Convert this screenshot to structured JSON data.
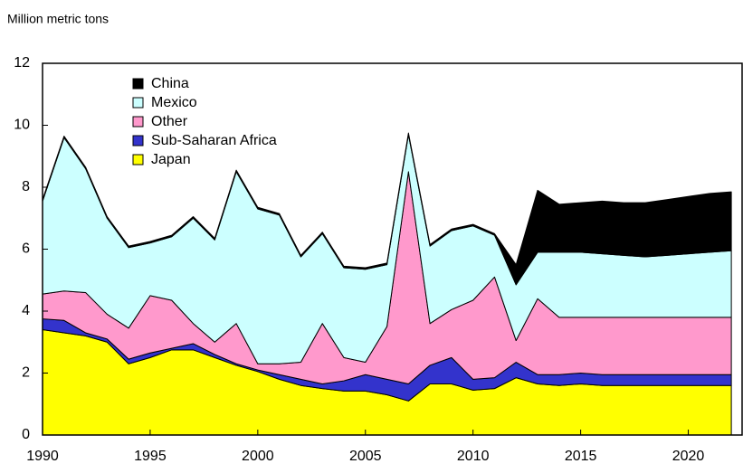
{
  "chart_data": {
    "type": "stacked_area",
    "y_axis_label": "Million metric tons",
    "x": [
      1990,
      1991,
      1992,
      1993,
      1994,
      1995,
      1996,
      1997,
      1998,
      1999,
      2000,
      2001,
      2002,
      2003,
      2004,
      2005,
      2006,
      2007,
      2008,
      2009,
      2010,
      2011,
      2012,
      2013,
      2014,
      2015,
      2016,
      2017,
      2018,
      2019,
      2020,
      2021,
      2022
    ],
    "series": [
      {
        "name": "Japan",
        "color": "#ffff00",
        "values": [
          3.4,
          3.3,
          3.2,
          3.0,
          2.3,
          2.5,
          2.75,
          2.75,
          2.5,
          2.25,
          2.05,
          1.8,
          1.6,
          1.5,
          1.42,
          1.42,
          1.3,
          1.1,
          1.65,
          1.65,
          1.45,
          1.5,
          1.85,
          1.65,
          1.6,
          1.65,
          1.6,
          1.6,
          1.6,
          1.6,
          1.6,
          1.6,
          1.6
        ]
      },
      {
        "name": "Sub-Saharan Africa",
        "color": "#3333cc",
        "values": [
          0.35,
          0.4,
          0.1,
          0.1,
          0.15,
          0.15,
          0.05,
          0.2,
          0.1,
          0.05,
          0.05,
          0.15,
          0.2,
          0.15,
          0.33,
          0.53,
          0.5,
          0.55,
          0.6,
          0.85,
          0.35,
          0.35,
          0.5,
          0.3,
          0.35,
          0.35,
          0.35,
          0.35,
          0.35,
          0.35,
          0.35,
          0.35,
          0.35
        ]
      },
      {
        "name": "Other",
        "color": "#ff99cc",
        "values": [
          0.8,
          0.95,
          1.3,
          0.8,
          1.0,
          1.85,
          1.55,
          0.65,
          0.4,
          1.3,
          0.2,
          0.35,
          0.55,
          1.95,
          0.75,
          0.4,
          1.7,
          6.85,
          1.35,
          1.55,
          2.55,
          3.25,
          0.7,
          2.45,
          1.85,
          1.8,
          1.85,
          1.85,
          1.85,
          1.85,
          1.85,
          1.85,
          1.85
        ]
      },
      {
        "name": "Mexico",
        "color": "#ccffff",
        "values": [
          3.0,
          4.95,
          4.0,
          3.1,
          2.6,
          1.7,
          2.05,
          3.4,
          3.3,
          4.9,
          5.0,
          4.8,
          3.4,
          2.9,
          2.9,
          3.0,
          2.0,
          1.2,
          2.5,
          2.55,
          2.4,
          1.35,
          1.8,
          1.5,
          2.1,
          2.1,
          2.05,
          2.0,
          1.95,
          2.0,
          2.05,
          2.1,
          2.15
        ]
      },
      {
        "name": "China",
        "color": "#000000",
        "values": [
          0.05,
          0.05,
          0.05,
          0.05,
          0.05,
          0.05,
          0.05,
          0.05,
          0.05,
          0.05,
          0.05,
          0.05,
          0.05,
          0.05,
          0.05,
          0.05,
          0.05,
          0.05,
          0.05,
          0.05,
          0.05,
          0.05,
          0.65,
          2.0,
          1.55,
          1.6,
          1.7,
          1.7,
          1.75,
          1.8,
          1.85,
          1.9,
          1.9
        ]
      }
    ],
    "xlim": [
      1990,
      2022.5
    ],
    "xticks": [
      1990,
      1995,
      2000,
      2005,
      2010,
      2015,
      2020
    ],
    "ylim": [
      0,
      12
    ],
    "yticks": [
      0,
      2,
      4,
      6,
      8,
      10,
      12
    ],
    "legend": "upper left"
  }
}
